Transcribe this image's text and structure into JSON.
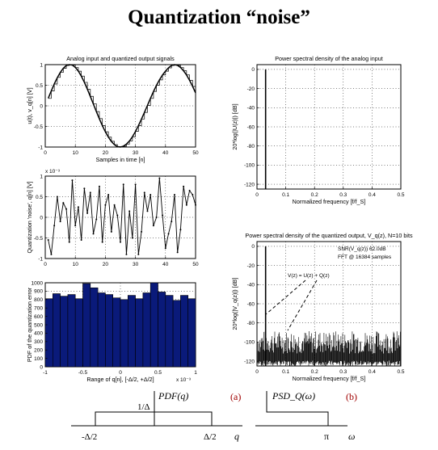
{
  "slide": {
    "title": "Quantization “noise”",
    "bottom": {
      "pdf_label": "PDF(q)",
      "pdf_tag": "(a)",
      "pdf_height": "1/Δ",
      "pdf_left": "-Δ/2",
      "pdf_right": "Δ/2",
      "pdf_axis": "q",
      "psd_label": "PSD_Q(ω)",
      "psd_tag": "(b)",
      "psd_pi": "π",
      "psd_axis": "ω"
    }
  },
  "chart_data": [
    {
      "type": "line",
      "id": "signals",
      "title": "Analog input and quantized output signals",
      "xlabel": "Samples in time [n]",
      "ylabel": "u(t), v_q[n] [V]",
      "xlim": [
        0,
        50
      ],
      "ylim": [
        -1,
        1
      ],
      "xticks": [
        0,
        10,
        20,
        30,
        40,
        50
      ],
      "yticks": [
        -1,
        -0.5,
        0,
        0.5,
        1
      ],
      "xtick_labels": [
        "0",
        "10",
        "20",
        "30",
        "40",
        "50"
      ],
      "ytick_labels": [
        "-1",
        "-0.5",
        "0",
        "0.5",
        "1"
      ],
      "grid": true,
      "series": [
        {
          "style": "smooth",
          "x": [
            1,
            2,
            3,
            4,
            5,
            6,
            7,
            8,
            9,
            10,
            11,
            12,
            13,
            14,
            15,
            16,
            17,
            18,
            19,
            20,
            21,
            22,
            23,
            24,
            25,
            26,
            27,
            28,
            29,
            30,
            31,
            32,
            33,
            34,
            35,
            36,
            37,
            38,
            39,
            40,
            41,
            42,
            43,
            44,
            45,
            46,
            47,
            48,
            49,
            50
          ],
          "values": [
            0.185,
            0.363,
            0.532,
            0.683,
            0.811,
            0.911,
            0.979,
            1.0,
            0.989,
            0.934,
            0.843,
            0.72,
            0.572,
            0.406,
            0.227,
            0.044,
            -0.138,
            -0.315,
            -0.481,
            -0.631,
            -0.76,
            -0.865,
            -0.943,
            -0.99,
            -0.999,
            -0.979,
            -0.93,
            -0.853,
            -0.75,
            -0.624,
            -0.48,
            -0.323,
            -0.158,
            0.012,
            0.183,
            0.346,
            0.497,
            0.632,
            0.749,
            0.843,
            0.924,
            0.98,
            1.0,
            0.983,
            0.931,
            0.85,
            0.748,
            0.62,
            0.475,
            0.315
          ]
        },
        {
          "style": "stairs",
          "x": [
            1,
            2,
            3,
            4,
            5,
            6,
            7,
            8,
            9,
            10,
            11,
            12,
            13,
            14,
            15,
            16,
            17,
            18,
            19,
            20,
            21,
            22,
            23,
            24,
            25,
            26,
            27,
            28,
            29,
            30,
            31,
            32,
            33,
            34,
            35,
            36,
            37,
            38,
            39,
            40,
            41,
            42,
            43,
            44,
            45,
            46,
            47,
            48,
            49,
            50
          ],
          "values": [
            0.18,
            0.36,
            0.53,
            0.69,
            0.81,
            0.91,
            0.98,
            1.0,
            0.99,
            0.93,
            0.84,
            0.72,
            0.57,
            0.4,
            0.23,
            0.05,
            -0.14,
            -0.31,
            -0.48,
            -0.63,
            -0.76,
            -0.86,
            -0.94,
            -0.99,
            -1.0,
            -0.98,
            -0.93,
            -0.85,
            -0.75,
            -0.62,
            -0.48,
            -0.32,
            -0.16,
            0.01,
            0.18,
            0.35,
            0.5,
            0.63,
            0.75,
            0.84,
            0.92,
            0.98,
            1.0,
            0.98,
            0.93,
            0.85,
            0.75,
            0.62,
            0.47,
            0.31
          ]
        }
      ]
    },
    {
      "type": "line",
      "id": "noise",
      "title": "",
      "exponent": "x 10⁻³",
      "xlabel": "",
      "ylabel": "Quantization 'noise', q[n] [V]",
      "xlim": [
        0,
        50
      ],
      "ylim": [
        -1,
        1
      ],
      "xticks": [
        0,
        10,
        20,
        30,
        40,
        50
      ],
      "yticks": [
        -1,
        -0.5,
        0,
        0.5,
        1
      ],
      "xtick_labels": [
        "0",
        "10",
        "20",
        "30",
        "40",
        "50"
      ],
      "ytick_labels": [
        "-1",
        "-0.5",
        "0",
        "0.5",
        "1"
      ],
      "grid": true,
      "series": [
        {
          "style": "line",
          "x": [
            1,
            2,
            3,
            4,
            5,
            6,
            7,
            8,
            9,
            10,
            11,
            12,
            13,
            14,
            15,
            16,
            17,
            18,
            19,
            20,
            21,
            22,
            23,
            24,
            25,
            26,
            27,
            28,
            29,
            30,
            31,
            32,
            33,
            34,
            35,
            36,
            37,
            38,
            39,
            40,
            41,
            42,
            43,
            44,
            45,
            46,
            47,
            48,
            49,
            50
          ],
          "values": [
            -0.55,
            -0.9,
            -0.2,
            0.5,
            -0.1,
            0.35,
            0.2,
            -0.6,
            0.9,
            -0.2,
            0.25,
            -0.55,
            0.7,
            0.1,
            0.6,
            -0.4,
            -0.05,
            0.75,
            -0.6,
            0.3,
            0.55,
            -0.35,
            0.3,
            0.05,
            -0.6,
            0.8,
            -0.9,
            0.15,
            -0.5,
            0.8,
            -0.9,
            -0.35,
            0.6,
            0.15,
            0.55,
            -0.2,
            0.0,
            0.95,
            0.05,
            -0.75,
            -0.4,
            -0.1,
            0.55,
            -0.85,
            -0.3,
            0.75,
            0.3,
            0.65,
            0.55,
            0.3
          ]
        }
      ]
    },
    {
      "type": "bar",
      "id": "histogram",
      "title": "",
      "exponent": "x 10⁻³",
      "xlabel": "Range of q[n], [-Δ/2, +Δ/2]",
      "ylabel": "PDF of the quantization error",
      "xlim": [
        -1,
        1
      ],
      "ylim": [
        0,
        1000
      ],
      "xticks": [
        -1,
        -0.5,
        0,
        0.5,
        1
      ],
      "yticks": [
        0,
        100,
        200,
        300,
        400,
        500,
        600,
        700,
        800,
        900,
        1000
      ],
      "xtick_labels": [
        "-1",
        "-0.5",
        "0",
        "0.5",
        "1"
      ],
      "ytick_labels": [
        "0",
        "100",
        "200",
        "300",
        "400",
        "500",
        "600",
        "700",
        "800",
        "900",
        "1000"
      ],
      "grid": true,
      "color": "#0a1a7a",
      "bin_edges": [
        -1,
        -0.9,
        -0.8,
        -0.7,
        -0.6,
        -0.5,
        -0.4,
        -0.3,
        -0.2,
        -0.1,
        0,
        0.1,
        0.2,
        0.3,
        0.4,
        0.5,
        0.6,
        0.7,
        0.8,
        0.9,
        1
      ],
      "values": [
        810,
        870,
        840,
        860,
        810,
        990,
        940,
        880,
        860,
        820,
        800,
        850,
        810,
        880,
        1000,
        890,
        850,
        790,
        850,
        810
      ]
    },
    {
      "type": "line",
      "id": "psd_analog",
      "title": "Power spectral density of the analog input",
      "xlabel": "Normalized frequency [f/f_S]",
      "ylabel": "20*log(|U(z)|) [dB]",
      "xlim": [
        0,
        0.5
      ],
      "ylim": [
        -125,
        5
      ],
      "xticks": [
        0,
        0.1,
        0.2,
        0.3,
        0.4,
        0.5
      ],
      "yticks": [
        -120,
        -100,
        -80,
        -60,
        -40,
        -20,
        0
      ],
      "xtick_labels": [
        "0",
        "0.1",
        "0.2",
        "0.3",
        "0.4",
        "0.5"
      ],
      "ytick_labels": [
        "-120",
        "-100",
        "-80",
        "-60",
        "-40",
        "-20",
        "0"
      ],
      "grid": true,
      "series": [
        {
          "style": "spike",
          "x": [
            0.03
          ],
          "values": [
            0
          ]
        }
      ]
    },
    {
      "type": "line",
      "id": "psd_quantized",
      "title": "Power spectral density of the quantized output, V_q(z), N=10 bits",
      "xlabel": "Normalized frequency [f/f_S]",
      "ylabel": "20*log(|V_q(z)|) [dB]",
      "xlim": [
        0,
        0.5
      ],
      "ylim": [
        -125,
        5
      ],
      "xticks": [
        0,
        0.1,
        0.2,
        0.3,
        0.4,
        0.5
      ],
      "yticks": [
        -120,
        -100,
        -80,
        -60,
        -40,
        -20,
        0
      ],
      "xtick_labels": [
        "0",
        "0.1",
        "0.2",
        "0.3",
        "0.4",
        "0.5"
      ],
      "ytick_labels": [
        "-120",
        "-100",
        "-80",
        "-60",
        "-40",
        "-20",
        "0"
      ],
      "grid": true,
      "series": [
        {
          "style": "spike",
          "x": [
            0.03
          ],
          "values": [
            0
          ]
        },
        {
          "style": "noise_floor",
          "range": [
            -125,
            -88
          ]
        }
      ],
      "annotations": [
        "SNR(V_q(z)) 62.0dB",
        "FFT @ 16384 samples",
        "V(z) = U(z) + Q(z)"
      ]
    }
  ]
}
